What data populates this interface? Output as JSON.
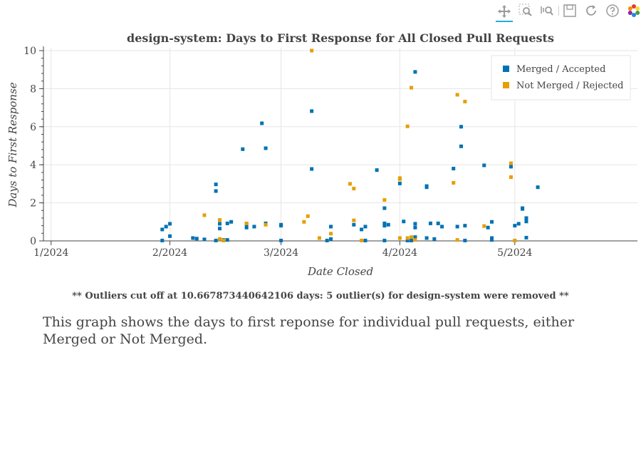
{
  "toolbar": {
    "icons": [
      "pan-icon",
      "box-zoom-icon",
      "wheel-zoom-icon",
      "save-icon",
      "reset-icon",
      "help-icon",
      "bokeh-logo-icon"
    ],
    "active": "pan-icon",
    "active_color": "#26aae1"
  },
  "footer": {
    "outlier_note": "** Outliers cut off at 10.667873440642106 days: 5 outlier(s) for design-system were removed **",
    "description": "This graph shows the days to first reponse for individual pull requests, either Merged or Not Merged."
  },
  "chart_data": {
    "type": "scatter",
    "title": "design-system: Days to First Response for All Closed Pull Requests",
    "xlabel": "Date Closed",
    "ylabel": "Days to First Response",
    "xlim": [
      "2023-12-30",
      "2024-06-02"
    ],
    "ylim": [
      0,
      10
    ],
    "x_ticks": [
      "2024-01-01",
      "2024-02-01",
      "2024-03-01",
      "2024-04-01",
      "2024-05-01"
    ],
    "x_tick_labels": [
      "1/2024",
      "2/2024",
      "3/2024",
      "4/2024",
      "5/2024"
    ],
    "y_ticks": [
      0,
      2,
      4,
      6,
      8,
      10
    ],
    "y_tick_labels": [
      "0",
      "2",
      "4",
      "6",
      "8",
      "10"
    ],
    "grid": true,
    "legend_position": "top-right",
    "series": [
      {
        "name": "Merged / Accepted",
        "color": "#0072b2",
        "points": [
          [
            "2024-01-30",
            0.6
          ],
          [
            "2024-01-30",
            0.02
          ],
          [
            "2024-01-31",
            0.75
          ],
          [
            "2024-02-01",
            0.9
          ],
          [
            "2024-02-01",
            0.25
          ],
          [
            "2024-02-07",
            0.15
          ],
          [
            "2024-02-08",
            0.12
          ],
          [
            "2024-02-10",
            0.08
          ],
          [
            "2024-02-13",
            2.62
          ],
          [
            "2024-02-13",
            2.97
          ],
          [
            "2024-02-13",
            0.02
          ],
          [
            "2024-02-14",
            0.9
          ],
          [
            "2024-02-14",
            0.65
          ],
          [
            "2024-02-15",
            0.05
          ],
          [
            "2024-02-16",
            0.05
          ],
          [
            "2024-02-16",
            0.92
          ],
          [
            "2024-02-17",
            1.0
          ],
          [
            "2024-02-20",
            4.82
          ],
          [
            "2024-02-21",
            0.7
          ],
          [
            "2024-02-21",
            0.88
          ],
          [
            "2024-02-23",
            0.75
          ],
          [
            "2024-02-25",
            6.18
          ],
          [
            "2024-02-26",
            4.87
          ],
          [
            "2024-02-26",
            0.92
          ],
          [
            "2024-03-01",
            0.8
          ],
          [
            "2024-03-01",
            0.02
          ],
          [
            "2024-03-01",
            0.85
          ],
          [
            "2024-03-09",
            6.82
          ],
          [
            "2024-03-09",
            3.78
          ],
          [
            "2024-03-13",
            0.02
          ],
          [
            "2024-03-14",
            0.75
          ],
          [
            "2024-03-14",
            0.1
          ],
          [
            "2024-03-20",
            0.85
          ],
          [
            "2024-03-22",
            0.6
          ],
          [
            "2024-03-23",
            0.75
          ],
          [
            "2024-03-23",
            0.02
          ],
          [
            "2024-03-26",
            3.72
          ],
          [
            "2024-03-28",
            1.72
          ],
          [
            "2024-03-28",
            0.8
          ],
          [
            "2024-03-28",
            0.92
          ],
          [
            "2024-03-28",
            0.02
          ],
          [
            "2024-03-29",
            0.85
          ],
          [
            "2024-04-01",
            3.02
          ],
          [
            "2024-04-02",
            1.02
          ],
          [
            "2024-04-03",
            0.02
          ],
          [
            "2024-04-04",
            0.02
          ],
          [
            "2024-04-05",
            8.88
          ],
          [
            "2024-04-05",
            0.9
          ],
          [
            "2024-04-05",
            0.7
          ],
          [
            "2024-04-05",
            0.2
          ],
          [
            "2024-04-08",
            2.88
          ],
          [
            "2024-04-08",
            2.82
          ],
          [
            "2024-04-08",
            0.15
          ],
          [
            "2024-04-09",
            0.92
          ],
          [
            "2024-04-10",
            0.1
          ],
          [
            "2024-04-11",
            0.92
          ],
          [
            "2024-04-12",
            0.75
          ],
          [
            "2024-04-15",
            3.8
          ],
          [
            "2024-04-16",
            0.75
          ],
          [
            "2024-04-17",
            6.0
          ],
          [
            "2024-04-17",
            4.97
          ],
          [
            "2024-04-18",
            0.8
          ],
          [
            "2024-04-18",
            0.02
          ],
          [
            "2024-04-23",
            3.97
          ],
          [
            "2024-04-24",
            0.7
          ],
          [
            "2024-04-25",
            1.0
          ],
          [
            "2024-04-25",
            0.15
          ],
          [
            "2024-04-25",
            0.05
          ],
          [
            "2024-04-30",
            3.9
          ],
          [
            "2024-05-01",
            0.8
          ],
          [
            "2024-05-02",
            0.9
          ],
          [
            "2024-05-03",
            1.72
          ],
          [
            "2024-05-03",
            1.68
          ],
          [
            "2024-05-04",
            1.2
          ],
          [
            "2024-05-04",
            1.02
          ],
          [
            "2024-05-04",
            0.17
          ],
          [
            "2024-05-07",
            2.82
          ]
        ]
      },
      {
        "name": "Not Merged / Rejected",
        "color": "#e69f00",
        "points": [
          [
            "2024-02-10",
            1.35
          ],
          [
            "2024-02-14",
            1.1
          ],
          [
            "2024-02-14",
            0.1
          ],
          [
            "2024-02-15",
            0.02
          ],
          [
            "2024-02-21",
            0.92
          ],
          [
            "2024-02-26",
            0.85
          ],
          [
            "2024-03-07",
            1.0
          ],
          [
            "2024-03-08",
            1.3
          ],
          [
            "2024-03-09",
            10.0
          ],
          [
            "2024-03-11",
            0.15
          ],
          [
            "2024-03-14",
            0.38
          ],
          [
            "2024-03-19",
            3.0
          ],
          [
            "2024-03-20",
            2.75
          ],
          [
            "2024-03-20",
            1.08
          ],
          [
            "2024-03-22",
            0.02
          ],
          [
            "2024-03-28",
            2.15
          ],
          [
            "2024-04-01",
            3.3
          ],
          [
            "2024-04-01",
            3.25
          ],
          [
            "2024-04-01",
            0.15
          ],
          [
            "2024-04-03",
            6.02
          ],
          [
            "2024-04-03",
            0.15
          ],
          [
            "2024-04-04",
            8.05
          ],
          [
            "2024-04-04",
            0.2
          ],
          [
            "2024-04-05",
            0.05
          ],
          [
            "2024-04-15",
            3.05
          ],
          [
            "2024-04-16",
            7.68
          ],
          [
            "2024-04-16",
            0.05
          ],
          [
            "2024-04-18",
            7.32
          ],
          [
            "2024-04-23",
            0.78
          ],
          [
            "2024-04-30",
            4.08
          ],
          [
            "2024-04-30",
            3.35
          ],
          [
            "2024-05-01",
            0.02
          ]
        ]
      }
    ]
  }
}
